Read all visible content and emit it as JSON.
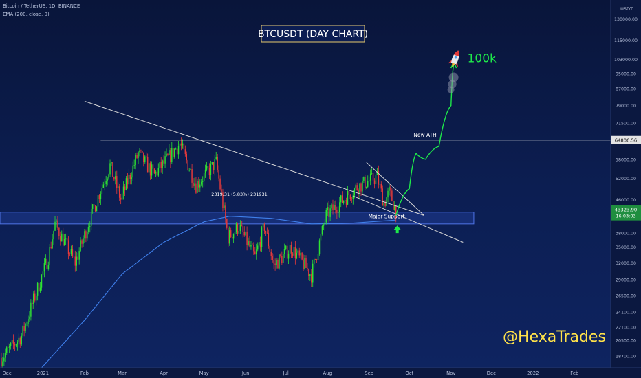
{
  "header": {
    "symbol_line": "Bitcoin / TetherUS, 1D, BINANCE",
    "indicator_line": "EMA (200, close, 0)",
    "currency_top": "USDT"
  },
  "chart_data": {
    "type": "candlestick",
    "title": "BTCUSDT (DAY CHART)",
    "x_ticks": [
      "Dec",
      "2021",
      "Feb",
      "Mar",
      "Apr",
      "May",
      "Jun",
      "Jul",
      "Aug",
      "Sep",
      "Oct",
      "Nov",
      "Dec",
      "2022",
      "Feb"
    ],
    "y_ticks": [
      130000,
      115000,
      103000,
      95000,
      87000,
      79000,
      71500,
      58000,
      52000,
      46000,
      38000,
      35000,
      32000,
      29000,
      26500,
      24100,
      22100,
      20500,
      18700
    ],
    "y_tick_labels": [
      "130000.00",
      "115000.00",
      "103000.00",
      "95000.00",
      "87000.00",
      "79000.00",
      "71500.00",
      "58000.00",
      "52000.00",
      "46000.00",
      "38000.00",
      "35000.00",
      "32000.00",
      "29000.00",
      "26500.00",
      "24100.00",
      "22100.00",
      "20500.00",
      "18700.00"
    ],
    "ylim": [
      17500,
      145000
    ],
    "y_scale": "log",
    "price_path": [
      [
        "2020-12-01",
        18500
      ],
      [
        "2020-12-16",
        21000
      ],
      [
        "2021-01-05",
        33000
      ],
      [
        "2021-01-10",
        40000
      ],
      [
        "2021-01-25",
        32000
      ],
      [
        "2021-02-08",
        44000
      ],
      [
        "2021-02-20",
        56000
      ],
      [
        "2021-02-28",
        46000
      ],
      [
        "2021-03-13",
        60000
      ],
      [
        "2021-03-25",
        53000
      ],
      [
        "2021-04-13",
        63500
      ],
      [
        "2021-04-25",
        50000
      ],
      [
        "2021-05-10",
        57000
      ],
      [
        "2021-05-19",
        37000
      ],
      [
        "2021-05-27",
        39500
      ],
      [
        "2021-06-08",
        33000
      ],
      [
        "2021-06-15",
        39500
      ],
      [
        "2021-06-22",
        31500
      ],
      [
        "2021-07-05",
        35000
      ],
      [
        "2021-07-20",
        29800
      ],
      [
        "2021-07-31",
        42000
      ],
      [
        "2021-08-23",
        49500
      ],
      [
        "2021-09-07",
        52500
      ],
      [
        "2021-09-12",
        45000
      ],
      [
        "2021-09-16",
        48000
      ],
      [
        "2021-09-21",
        43323
      ]
    ],
    "ema": {
      "name": "EMA (200, close, 0)",
      "points": [
        [
          "2020-12-31",
          17500
        ],
        [
          "2021-02-01",
          23000
        ],
        [
          "2021-03-01",
          30000
        ],
        [
          "2021-04-01",
          36000
        ],
        [
          "2021-05-01",
          40500
        ],
        [
          "2021-05-20",
          41800
        ],
        [
          "2021-06-20",
          41300
        ],
        [
          "2021-07-20",
          40000
        ],
        [
          "2021-08-20",
          40200
        ],
        [
          "2021-09-21",
          40900
        ]
      ]
    },
    "projection": [
      [
        "2021-09-21",
        42000
      ],
      [
        "2021-10-01",
        49000
      ],
      [
        "2021-10-06",
        60000
      ],
      [
        "2021-10-13",
        58000
      ],
      [
        "2021-10-23",
        62500
      ],
      [
        "2021-11-01",
        79000
      ],
      [
        "2021-11-03",
        100000
      ]
    ],
    "trendlines": [
      {
        "from": [
          "2021-02-01",
          81000
        ],
        "to": [
          "2021-10-12",
          42000
        ]
      },
      {
        "from": [
          "2021-08-30",
          57000
        ],
        "to": [
          "2021-10-12",
          42000
        ]
      },
      {
        "from": [
          "2021-08-20",
          47000
        ],
        "to": [
          "2021-11-10",
          36000
        ]
      }
    ],
    "ath_line": {
      "value": 64806.56,
      "label": "New ATH",
      "from": "2021-02-13",
      "price_label": "64806.56"
    },
    "support_zone": {
      "low": 40000,
      "high": 42800,
      "label": "Major Support",
      "to": "2021-11-18"
    },
    "current_price": {
      "value": 43323,
      "label": "43323.90",
      "countdown": "16:03:03"
    },
    "measure_label": "2319.31 (5.83%) 231931",
    "target_label": "100k",
    "watermark": "@HexaTrades",
    "colors": {
      "up": "#2fe332",
      "down": "#e83a3a",
      "ema": "#3f7fea",
      "lines": "#d8d8d8",
      "target": "#1ee84a",
      "accent_box": "#e7c96c"
    }
  }
}
